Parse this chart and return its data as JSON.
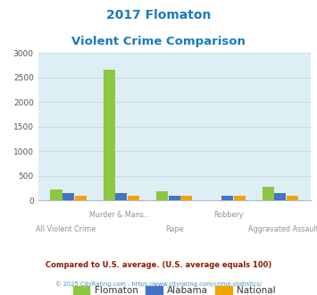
{
  "title_line1": "2017 Flomaton",
  "title_line2": "Violent Crime Comparison",
  "title_color": "#1a7abf",
  "categories": [
    "All Violent Crime",
    "Murder & Mans...",
    "Rape",
    "Robbery",
    "Aggravated Assault"
  ],
  "cat_labels_row1": [
    "",
    "Murder & Mans...",
    "",
    "Robbery",
    ""
  ],
  "cat_labels_row2": [
    "All Violent Crime",
    "",
    "Rape",
    "",
    "Aggravated Assault"
  ],
  "flomaton": [
    220,
    2670,
    185,
    0,
    285
  ],
  "alabama": [
    145,
    160,
    90,
    95,
    155
  ],
  "national": [
    100,
    100,
    100,
    100,
    100
  ],
  "flomaton_color": "#8dc63f",
  "alabama_color": "#4472c4",
  "national_color": "#f0a500",
  "ylim": [
    0,
    3000
  ],
  "yticks": [
    0,
    500,
    1000,
    1500,
    2000,
    2500,
    3000
  ],
  "plot_bg": "#ddeef5",
  "grid_color": "#c5d8dd",
  "legend_labels": [
    "Flomaton",
    "Alabama",
    "National"
  ],
  "footnote1": "Compared to U.S. average. (U.S. average equals 100)",
  "footnote2": "© 2025 CityRating.com - https://www.cityrating.com/crime-statistics/",
  "footnote1_color": "#8b1a00",
  "footnote2_color": "#4090c0"
}
